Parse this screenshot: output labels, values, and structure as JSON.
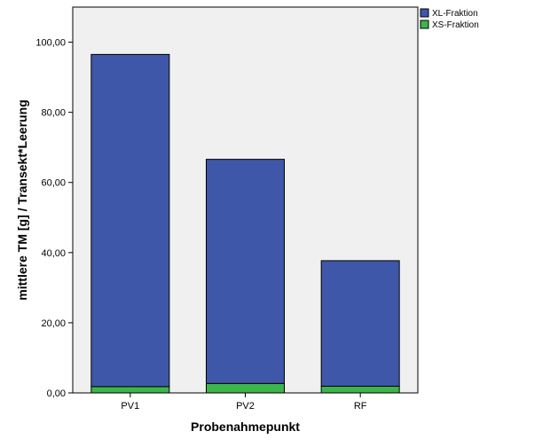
{
  "chart_data": {
    "type": "bar",
    "stacked": true,
    "categories": [
      "PV1",
      "PV2",
      "RF"
    ],
    "series": [
      {
        "name": "XS-Fraktion",
        "values": [
          1.8,
          2.7,
          1.9
        ],
        "color": "#3cb54a"
      },
      {
        "name": "XL-Fraktion",
        "values": [
          94.7,
          63.9,
          35.8
        ],
        "color": "#3f57a8"
      }
    ],
    "xlabel": "Probenahmepunkt",
    "ylabel": "mittlere TM [g] / Transekt*Leerung",
    "ylim": [
      0,
      110
    ],
    "yticks": [
      0,
      20,
      40,
      60,
      80,
      100
    ],
    "ytick_labels": [
      "0,00",
      "20,00",
      "40,00",
      "60,00",
      "80,00",
      "100,00"
    ],
    "legend": {
      "placement": "top-right-outside",
      "entries": [
        "XL-Fraktion",
        "XS-Fraktion"
      ]
    },
    "grid": false,
    "plot_background": "#f0f0f0"
  }
}
